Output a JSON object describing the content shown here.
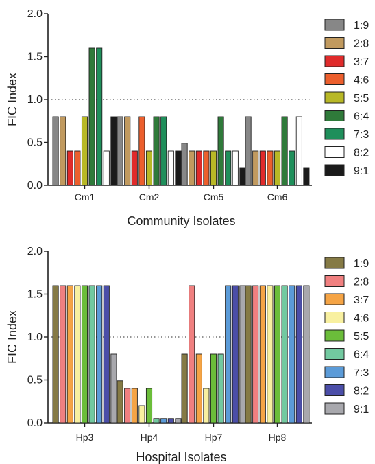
{
  "chart_data": [
    {
      "type": "bar",
      "title": "",
      "xlabel": "Community Isolates",
      "ylabel": "FIC Index",
      "ylim": [
        0,
        2
      ],
      "yticks": [
        "0.0",
        "0.5",
        "1.0",
        "1.5",
        "2.0"
      ],
      "reference_line": {
        "y": 1.0,
        "style": "dotted"
      },
      "categories": [
        "Cm1",
        "Cm2",
        "Cm5",
        "Cm6"
      ],
      "series": [
        {
          "name": "1:9",
          "color": "#878787",
          "values": [
            0.8,
            0.8,
            0.49,
            0.8
          ]
        },
        {
          "name": "2:8",
          "color": "#c19a5f",
          "values": [
            0.8,
            0.8,
            0.4,
            0.4
          ]
        },
        {
          "name": "3:7",
          "color": "#e02b2b",
          "values": [
            0.4,
            0.4,
            0.4,
            0.4
          ]
        },
        {
          "name": "4:6",
          "color": "#ec5f2d",
          "values": [
            0.4,
            0.8,
            0.4,
            0.4
          ]
        },
        {
          "name": "5:5",
          "color": "#b8b826",
          "values": [
            0.8,
            0.4,
            0.4,
            0.4
          ]
        },
        {
          "name": "6:4",
          "color": "#2f7a3a",
          "values": [
            1.6,
            0.8,
            0.8,
            0.8
          ]
        },
        {
          "name": "7:3",
          "color": "#1f8f5b",
          "values": [
            1.6,
            0.8,
            0.4,
            0.4
          ]
        },
        {
          "name": "8:2",
          "color": "#ffffff",
          "values": [
            0.4,
            0.4,
            0.4,
            0.8
          ]
        },
        {
          "name": "9:1",
          "color": "#1a1a1a",
          "values": [
            0.8,
            0.4,
            0.2,
            0.2
          ]
        }
      ]
    },
    {
      "type": "bar",
      "title": "",
      "xlabel": "Hospital Isolates",
      "ylabel": "FIC Index",
      "ylim": [
        0,
        2
      ],
      "yticks": [
        "0.0",
        "0.5",
        "1.0",
        "1.5",
        "2.0"
      ],
      "reference_line": {
        "y": 1.0,
        "style": "dotted"
      },
      "categories": [
        "Hp3",
        "Hp4",
        "Hp7",
        "Hp8"
      ],
      "series": [
        {
          "name": "1:9",
          "color": "#857a45",
          "values": [
            1.6,
            0.49,
            0.8,
            1.6
          ]
        },
        {
          "name": "2:8",
          "color": "#f08080",
          "values": [
            1.6,
            0.4,
            1.6,
            1.6
          ]
        },
        {
          "name": "3:7",
          "color": "#f5a445",
          "values": [
            1.6,
            0.4,
            0.8,
            1.6
          ]
        },
        {
          "name": "4:6",
          "color": "#f8f0a0",
          "values": [
            1.6,
            0.2,
            0.4,
            1.6
          ]
        },
        {
          "name": "5:5",
          "color": "#6bbd3a",
          "values": [
            1.6,
            0.4,
            0.8,
            1.6
          ]
        },
        {
          "name": "6:4",
          "color": "#72c9a0",
          "values": [
            1.6,
            0.05,
            0.8,
            1.6
          ]
        },
        {
          "name": "7:3",
          "color": "#5b9bd8",
          "values": [
            1.6,
            0.05,
            1.6,
            1.6
          ]
        },
        {
          "name": "8:2",
          "color": "#4b4ea8",
          "values": [
            1.6,
            0.05,
            1.6,
            1.6
          ]
        },
        {
          "name": "9:1",
          "color": "#a8a8ad",
          "values": [
            0.8,
            0.05,
            1.6,
            1.6
          ]
        }
      ]
    }
  ]
}
